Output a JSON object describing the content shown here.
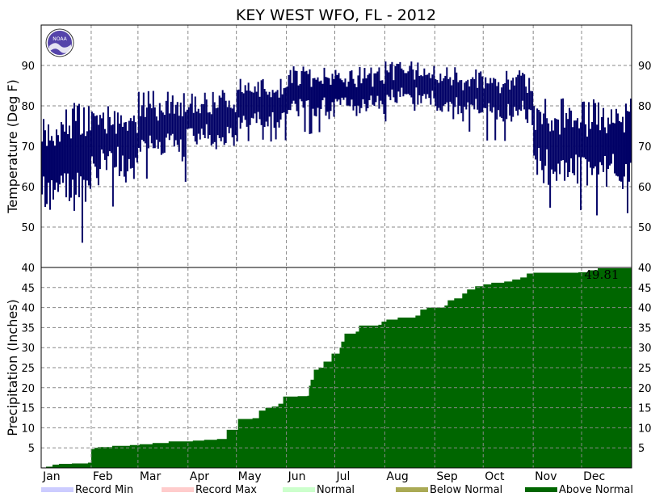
{
  "chart_data": [
    {
      "type": "bar",
      "panel": "temperature",
      "title": "KEY WEST WFO, FL - 2012",
      "ylabel": "Temperature (Deg F)",
      "ylim": [
        40,
        100
      ],
      "yticks": [
        50,
        60,
        70,
        80,
        90
      ],
      "grid": true,
      "series_color": "#000066",
      "note": "daily high/low range bars",
      "monthly_ranges": [
        {
          "month": "Jan",
          "low_min": 45,
          "high_max": 81
        },
        {
          "month": "Feb",
          "low_min": 55,
          "high_max": 82
        },
        {
          "month": "Mar",
          "low_min": 61,
          "high_max": 84
        },
        {
          "month": "Apr",
          "low_min": 65,
          "high_max": 84
        },
        {
          "month": "May",
          "low_min": 71,
          "high_max": 87
        },
        {
          "month": "Jun",
          "low_min": 73,
          "high_max": 90
        },
        {
          "month": "Jul",
          "low_min": 74,
          "high_max": 90
        },
        {
          "month": "Aug",
          "low_min": 76,
          "high_max": 91
        },
        {
          "month": "Sep",
          "low_min": 73,
          "high_max": 90
        },
        {
          "month": "Oct",
          "low_min": 71,
          "high_max": 89
        },
        {
          "month": "Nov",
          "low_min": 54,
          "high_max": 82
        },
        {
          "month": "Dec",
          "low_min": 52,
          "high_max": 82
        }
      ]
    },
    {
      "type": "area",
      "panel": "precipitation",
      "ylabel": "Precipitation (Inches)",
      "ylim": [
        0,
        50
      ],
      "yticks": [
        5,
        10,
        15,
        20,
        25,
        30,
        35,
        40,
        45
      ],
      "right_top_label": "40",
      "grid": true,
      "series_color": "#006600",
      "total_label": "49.81",
      "cumulative": [
        {
          "day": 1,
          "v": 0
        },
        {
          "day": 4,
          "v": 0.3
        },
        {
          "day": 8,
          "v": 0.8
        },
        {
          "day": 12,
          "v": 1.0
        },
        {
          "day": 20,
          "v": 1.1
        },
        {
          "day": 30,
          "v": 1.3
        },
        {
          "day": 32,
          "v": 4.7
        },
        {
          "day": 34,
          "v": 5.0
        },
        {
          "day": 36,
          "v": 5.2
        },
        {
          "day": 45,
          "v": 5.5
        },
        {
          "day": 56,
          "v": 5.7
        },
        {
          "day": 62,
          "v": 5.9
        },
        {
          "day": 70,
          "v": 6.2
        },
        {
          "day": 80,
          "v": 6.6
        },
        {
          "day": 95,
          "v": 6.8
        },
        {
          "day": 102,
          "v": 7.0
        },
        {
          "day": 110,
          "v": 7.2
        },
        {
          "day": 116,
          "v": 9.5
        },
        {
          "day": 123,
          "v": 12.2
        },
        {
          "day": 132,
          "v": 12.4
        },
        {
          "day": 136,
          "v": 14.3
        },
        {
          "day": 140,
          "v": 15.0
        },
        {
          "day": 144,
          "v": 15.3
        },
        {
          "day": 148,
          "v": 16.0
        },
        {
          "day": 151,
          "v": 17.8
        },
        {
          "day": 160,
          "v": 17.9
        },
        {
          "day": 166,
          "v": 18.0
        },
        {
          "day": 167,
          "v": 20.5
        },
        {
          "day": 168,
          "v": 22.0
        },
        {
          "day": 170,
          "v": 24.5
        },
        {
          "day": 173,
          "v": 25.0
        },
        {
          "day": 176,
          "v": 26.5
        },
        {
          "day": 181,
          "v": 28.5
        },
        {
          "day": 186,
          "v": 30.0
        },
        {
          "day": 187,
          "v": 31.5
        },
        {
          "day": 189,
          "v": 33.5
        },
        {
          "day": 196,
          "v": 34.0
        },
        {
          "day": 198,
          "v": 35.5
        },
        {
          "day": 210,
          "v": 35.7
        },
        {
          "day": 212,
          "v": 36.5
        },
        {
          "day": 215,
          "v": 37.0
        },
        {
          "day": 222,
          "v": 37.5
        },
        {
          "day": 233,
          "v": 38.0
        },
        {
          "day": 236,
          "v": 39.5
        },
        {
          "day": 240,
          "v": 40.0
        },
        {
          "day": 251,
          "v": 40.5
        },
        {
          "day": 253,
          "v": 41.8
        },
        {
          "day": 257,
          "v": 42.3
        },
        {
          "day": 262,
          "v": 43.5
        },
        {
          "day": 265,
          "v": 44.5
        },
        {
          "day": 270,
          "v": 45.3
        },
        {
          "day": 275,
          "v": 45.8
        },
        {
          "day": 280,
          "v": 46.2
        },
        {
          "day": 288,
          "v": 46.5
        },
        {
          "day": 293,
          "v": 47.0
        },
        {
          "day": 298,
          "v": 47.5
        },
        {
          "day": 302,
          "v": 48.5
        },
        {
          "day": 306,
          "v": 48.7
        },
        {
          "day": 334,
          "v": 48.8
        },
        {
          "day": 340,
          "v": 49.3
        },
        {
          "day": 346,
          "v": 49.81
        },
        {
          "day": 366,
          "v": 49.81
        }
      ]
    }
  ],
  "months": [
    "Jan",
    "Feb",
    "Mar",
    "Apr",
    "May",
    "Jun",
    "Jul",
    "Aug",
    "Sep",
    "Oct",
    "Nov",
    "Dec"
  ],
  "legend": [
    {
      "label": "Record Min",
      "color": "#ccccff"
    },
    {
      "label": "Record Max",
      "color": "#ffcccc"
    },
    {
      "label": "Normal",
      "color": "#ccffcc"
    },
    {
      "label": "Below Normal",
      "color": "#aaaa55"
    },
    {
      "label": "Above Normal",
      "color": "#006600"
    }
  ],
  "logo": {
    "text": "NOAA",
    "color": "#5544aa"
  }
}
